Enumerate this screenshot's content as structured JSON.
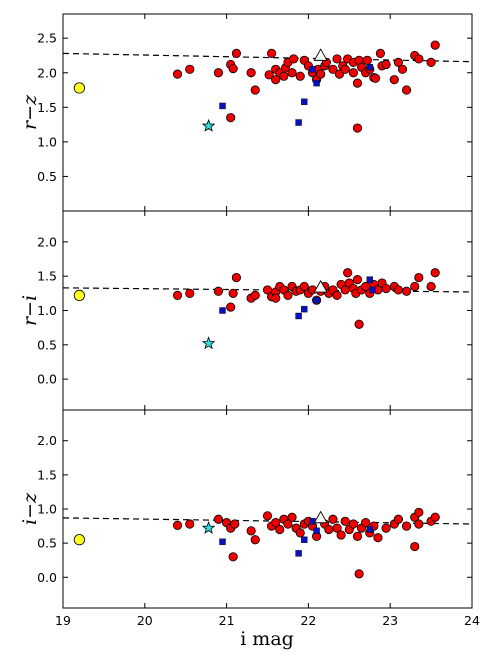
{
  "chart_data": {
    "type": "scatter",
    "xlabel": "i mag",
    "xlim": [
      19,
      24
    ],
    "xticks": [
      19,
      20,
      21,
      22,
      23,
      24
    ],
    "colors": {
      "galaxy": "#ee0000",
      "square": "#0a12b4",
      "star": "#33dddd",
      "circle_big": "#ffff22",
      "triangle": "#ffffff",
      "fit_line": "#000000"
    },
    "panels": [
      {
        "ylabel": "r−z",
        "ylim": [
          0.0,
          2.85
        ],
        "yticks": [
          "0.5",
          "1.0",
          "1.5",
          "2.0",
          "2.5"
        ],
        "fit_line": {
          "x": [
            19.0,
            24.0
          ],
          "y": [
            2.28,
            2.16
          ]
        },
        "series": [
          {
            "points": [
              [
                20.4,
                1.98
              ],
              [
                20.55,
                2.05
              ],
              [
                20.9,
                2.0
              ],
              [
                21.05,
                2.12
              ],
              [
                21.08,
                2.06
              ],
              [
                21.12,
                2.28
              ],
              [
                21.3,
                2.0
              ],
              [
                21.35,
                1.75
              ],
              [
                21.52,
                1.97
              ],
              [
                21.55,
                2.28
              ],
              [
                21.6,
                2.05
              ],
              [
                21.6,
                1.9
              ],
              [
                21.65,
                2.0
              ],
              [
                21.7,
                1.95
              ],
              [
                21.72,
                2.07
              ],
              [
                21.75,
                2.15
              ],
              [
                21.8,
                2.0
              ],
              [
                21.82,
                2.2
              ],
              [
                21.9,
                1.95
              ],
              [
                21.95,
                2.18
              ],
              [
                22.0,
                2.1
              ],
              [
                22.05,
                2.0
              ],
              [
                22.1,
                1.9
              ],
              [
                22.12,
                2.05
              ],
              [
                22.15,
                1.98
              ],
              [
                22.2,
                2.1
              ],
              [
                22.22,
                2.15
              ],
              [
                22.3,
                2.05
              ],
              [
                22.35,
                2.2
              ],
              [
                22.38,
                1.98
              ],
              [
                22.42,
                2.1
              ],
              [
                22.45,
                2.05
              ],
              [
                22.48,
                2.2
              ],
              [
                22.55,
                2.15
              ],
              [
                22.55,
                2.0
              ],
              [
                22.6,
                1.85
              ],
              [
                22.62,
                2.18
              ],
              [
                22.65,
                2.08
              ],
              [
                22.7,
                2.0
              ],
              [
                22.72,
                2.18
              ],
              [
                22.75,
                2.05
              ],
              [
                22.8,
                1.93
              ],
              [
                22.88,
                2.28
              ],
              [
                22.9,
                2.1
              ],
              [
                22.95,
                2.12
              ],
              [
                23.05,
                1.9
              ],
              [
                23.1,
                2.15
              ],
              [
                23.15,
                2.05
              ],
              [
                23.2,
                1.75
              ],
              [
                23.3,
                2.25
              ],
              [
                23.35,
                2.2
              ],
              [
                23.55,
                2.4
              ],
              [
                23.5,
                2.15
              ],
              [
                22.82,
                1.92
              ],
              [
                21.05,
                1.35
              ],
              [
                22.6,
                1.2
              ]
            ]
          },
          {
            "points": [
              [
                20.95,
                1.52
              ],
              [
                21.88,
                1.28
              ],
              [
                21.95,
                1.58
              ],
              [
                22.05,
                2.05
              ],
              [
                22.1,
                1.85
              ],
              [
                22.75,
                2.08
              ]
            ]
          },
          {
            "points": [
              [
                20.78,
                1.23
              ]
            ]
          },
          {
            "points": [
              [
                19.2,
                1.78
              ]
            ]
          },
          {
            "points": [
              [
                22.15,
                2.24
              ]
            ]
          }
        ]
      },
      {
        "ylabel": "r−i",
        "ylim": [
          -0.45,
          2.45
        ],
        "yticks": [
          "0.0",
          "0.5",
          "1.0",
          "1.5",
          "2.0"
        ],
        "fit_line": {
          "x": [
            19.0,
            24.0
          ],
          "y": [
            1.33,
            1.27
          ]
        },
        "series": [
          {
            "points": [
              [
                20.4,
                1.22
              ],
              [
                20.55,
                1.25
              ],
              [
                20.9,
                1.28
              ],
              [
                21.05,
                1.05
              ],
              [
                21.08,
                1.25
              ],
              [
                21.12,
                1.48
              ],
              [
                21.3,
                1.18
              ],
              [
                21.35,
                1.22
              ],
              [
                21.5,
                1.3
              ],
              [
                21.55,
                1.2
              ],
              [
                21.6,
                1.27
              ],
              [
                21.65,
                1.35
              ],
              [
                21.7,
                1.3
              ],
              [
                21.75,
                1.22
              ],
              [
                21.8,
                1.35
              ],
              [
                21.85,
                1.28
              ],
              [
                21.9,
                1.3
              ],
              [
                21.95,
                1.35
              ],
              [
                22.0,
                1.25
              ],
              [
                22.05,
                1.3
              ],
              [
                22.1,
                1.15
              ],
              [
                22.15,
                1.28
              ],
              [
                22.2,
                1.35
              ],
              [
                22.25,
                1.25
              ],
              [
                22.3,
                1.3
              ],
              [
                22.35,
                1.22
              ],
              [
                22.4,
                1.38
              ],
              [
                22.45,
                1.3
              ],
              [
                22.48,
                1.55
              ],
              [
                22.5,
                1.4
              ],
              [
                22.55,
                1.32
              ],
              [
                22.58,
                1.25
              ],
              [
                22.6,
                1.45
              ],
              [
                22.65,
                1.3
              ],
              [
                22.7,
                1.35
              ],
              [
                22.75,
                1.25
              ],
              [
                22.8,
                1.38
              ],
              [
                22.85,
                1.3
              ],
              [
                22.9,
                1.4
              ],
              [
                22.95,
                1.32
              ],
              [
                23.05,
                1.35
              ],
              [
                23.1,
                1.3
              ],
              [
                23.2,
                1.28
              ],
              [
                23.3,
                1.35
              ],
              [
                23.35,
                1.48
              ],
              [
                23.5,
                1.35
              ],
              [
                23.55,
                1.55
              ],
              [
                22.62,
                0.8
              ],
              [
                21.6,
                1.18
              ]
            ]
          },
          {
            "points": [
              [
                20.95,
                1.0
              ],
              [
                21.88,
                0.92
              ],
              [
                21.95,
                1.02
              ],
              [
                22.1,
                1.15
              ],
              [
                22.75,
                1.45
              ],
              [
                22.78,
                1.3
              ]
            ]
          },
          {
            "points": [
              [
                20.78,
                0.52
              ]
            ]
          },
          {
            "points": [
              [
                19.2,
                1.22
              ]
            ]
          },
          {
            "points": [
              [
                22.15,
                1.33
              ]
            ]
          }
        ]
      },
      {
        "ylabel": "i−z",
        "ylim": [
          -0.45,
          2.45
        ],
        "yticks": [
          "0.0",
          "0.5",
          "1.0",
          "1.5",
          "2.0"
        ],
        "fit_line": {
          "x": [
            19.0,
            24.0
          ],
          "y": [
            0.87,
            0.78
          ]
        },
        "series": [
          {
            "points": [
              [
                20.4,
                0.76
              ],
              [
                20.55,
                0.78
              ],
              [
                20.9,
                0.85
              ],
              [
                21.0,
                0.8
              ],
              [
                21.05,
                0.72
              ],
              [
                21.1,
                0.78
              ],
              [
                21.3,
                0.68
              ],
              [
                21.35,
                0.55
              ],
              [
                21.5,
                0.9
              ],
              [
                21.55,
                0.75
              ],
              [
                21.6,
                0.8
              ],
              [
                21.65,
                0.7
              ],
              [
                21.7,
                0.85
              ],
              [
                21.75,
                0.78
              ],
              [
                21.8,
                0.88
              ],
              [
                21.85,
                0.72
              ],
              [
                21.9,
                0.65
              ],
              [
                21.95,
                0.78
              ],
              [
                22.0,
                0.82
              ],
              [
                22.05,
                0.75
              ],
              [
                22.1,
                0.6
              ],
              [
                22.2,
                0.78
              ],
              [
                22.25,
                0.7
              ],
              [
                22.3,
                0.85
              ],
              [
                22.35,
                0.72
              ],
              [
                22.4,
                0.62
              ],
              [
                22.45,
                0.82
              ],
              [
                22.5,
                0.7
              ],
              [
                22.55,
                0.78
              ],
              [
                22.6,
                0.6
              ],
              [
                22.65,
                0.72
              ],
              [
                22.7,
                0.8
              ],
              [
                22.75,
                0.65
              ],
              [
                22.8,
                0.75
              ],
              [
                22.85,
                0.58
              ],
              [
                22.95,
                0.72
              ],
              [
                23.05,
                0.78
              ],
              [
                23.1,
                0.85
              ],
              [
                23.2,
                0.75
              ],
              [
                23.3,
                0.88
              ],
              [
                23.35,
                0.95
              ],
              [
                23.5,
                0.82
              ],
              [
                23.55,
                0.88
              ],
              [
                23.3,
                0.45
              ],
              [
                21.08,
                0.3
              ],
              [
                22.62,
                0.05
              ],
              [
                23.35,
                0.78
              ]
            ]
          },
          {
            "points": [
              [
                20.95,
                0.52
              ],
              [
                21.88,
                0.35
              ],
              [
                21.95,
                0.55
              ],
              [
                22.05,
                0.82
              ],
              [
                22.1,
                0.68
              ],
              [
                22.75,
                0.7
              ]
            ]
          },
          {
            "points": [
              [
                20.78,
                0.72
              ]
            ]
          },
          {
            "points": [
              [
                19.2,
                0.55
              ]
            ]
          },
          {
            "points": [
              [
                22.15,
                0.86
              ]
            ]
          }
        ]
      }
    ]
  }
}
